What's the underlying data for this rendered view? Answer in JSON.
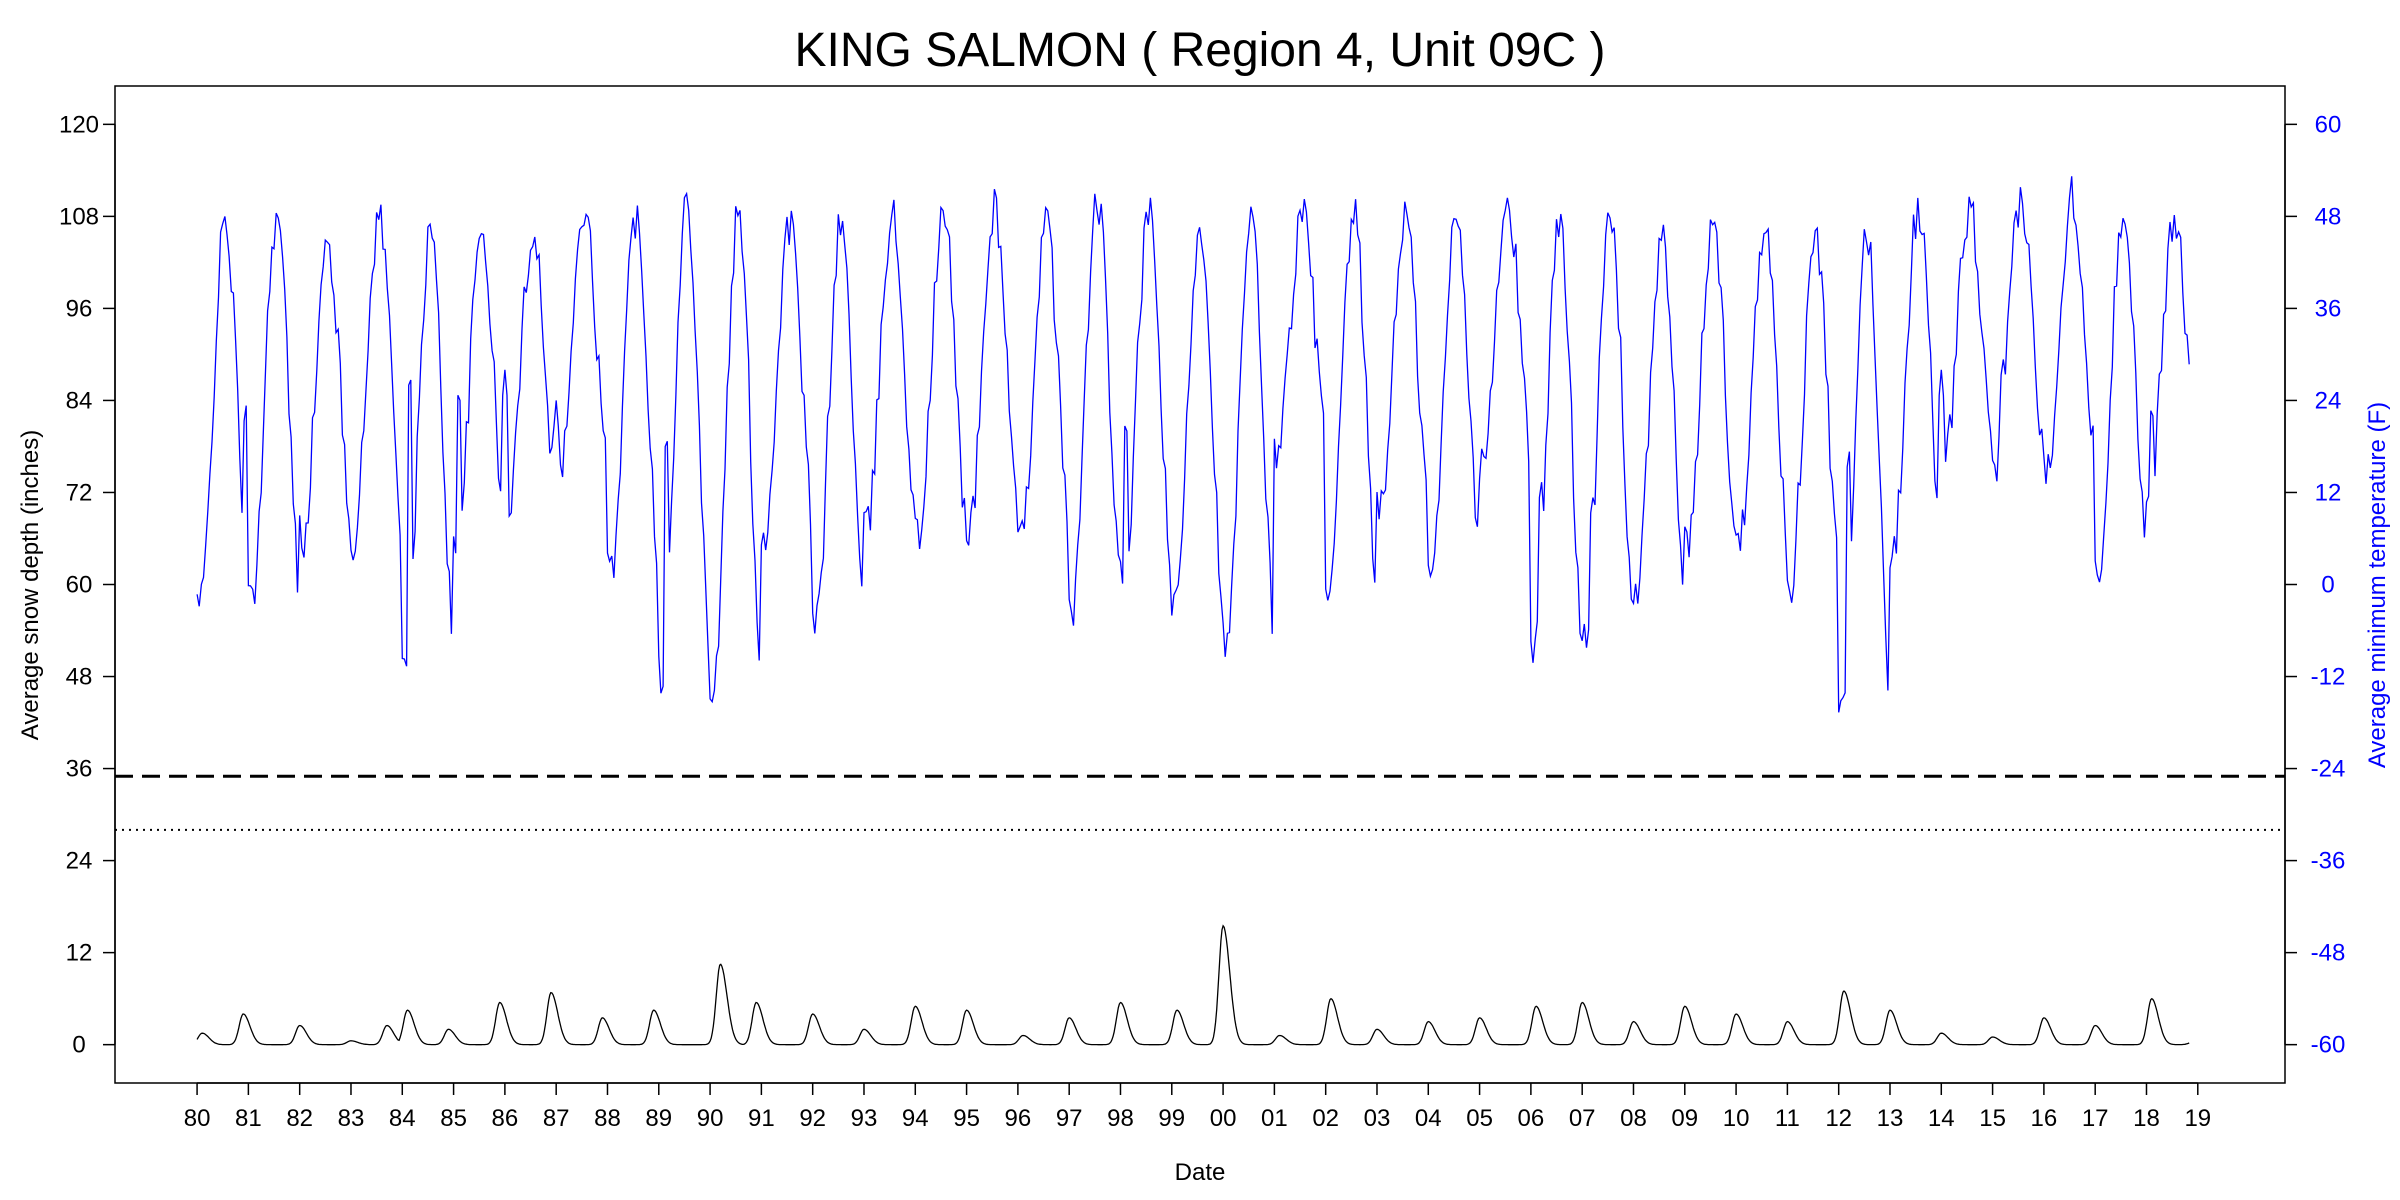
{
  "chart_data": {
    "type": "line",
    "title": "KING SALMON ( Region 4, Unit 09C )",
    "xlabel": "Date",
    "ylabel": "Average snow depth (inches)",
    "ylabel_right": "Average minimum temperature (F)",
    "x_ticks": [
      "80",
      "81",
      "82",
      "83",
      "84",
      "85",
      "86",
      "87",
      "88",
      "89",
      "90",
      "91",
      "92",
      "93",
      "94",
      "95",
      "96",
      "97",
      "98",
      "99",
      "00",
      "01",
      "02",
      "03",
      "04",
      "05",
      "06",
      "07",
      "08",
      "09",
      "10",
      "11",
      "12",
      "13",
      "14",
      "15",
      "16",
      "17",
      "18",
      "19"
    ],
    "y_ticks_left": [
      0,
      12,
      24,
      36,
      48,
      60,
      72,
      84,
      96,
      108,
      120
    ],
    "y_ticks_right": [
      -60,
      -48,
      -36,
      -24,
      -12,
      0,
      12,
      24,
      36,
      48,
      60
    ],
    "ylim_left": [
      -5,
      125
    ],
    "ylim_right": [
      -65,
      65
    ],
    "xlim": [
      1978.4,
      2020.7
    ],
    "reference_lines": [
      {
        "style": "dashed",
        "y": 35,
        "axis": "left"
      },
      {
        "style": "dotted",
        "y": 28,
        "axis": "left"
      }
    ],
    "series": [
      {
        "axis": "left",
        "color": "#000000",
        "annual_peaks": [
          [
            1980.1,
            1.5
          ],
          [
            1980.9,
            4
          ],
          [
            1982.0,
            2.5
          ],
          [
            1983.0,
            0.5
          ],
          [
            1983.7,
            2.5
          ],
          [
            1984.1,
            4.5
          ],
          [
            1984.9,
            2
          ],
          [
            1985.9,
            5.5
          ],
          [
            1986.9,
            6.8
          ],
          [
            1987.9,
            3.5
          ],
          [
            1988.9,
            4.5
          ],
          [
            1990.2,
            10.5
          ],
          [
            1990.9,
            5.5
          ],
          [
            1992.0,
            4
          ],
          [
            1993.0,
            2
          ],
          [
            1994.0,
            5
          ],
          [
            1995.0,
            4.5
          ],
          [
            1996.1,
            1.2
          ],
          [
            1997.0,
            3.5
          ],
          [
            1998.0,
            5.5
          ],
          [
            1999.1,
            4.5
          ],
          [
            2000.0,
            15.5
          ],
          [
            2001.1,
            1.2
          ],
          [
            2002.1,
            6
          ],
          [
            2003.0,
            2
          ],
          [
            2004.0,
            3
          ],
          [
            2005.0,
            3.5
          ],
          [
            2006.1,
            5
          ],
          [
            2007.0,
            5.5
          ],
          [
            2008.0,
            3
          ],
          [
            2009.0,
            5
          ],
          [
            2010.0,
            4
          ],
          [
            2011.0,
            3
          ],
          [
            2012.1,
            7
          ],
          [
            2013.0,
            4.5
          ],
          [
            2014.0,
            1.5
          ],
          [
            2015.0,
            1
          ],
          [
            2016.0,
            3.5
          ],
          [
            2017.0,
            2.5
          ],
          [
            2018.1,
            6
          ],
          [
            2018.9,
            0.3
          ]
        ]
      },
      {
        "axis": "right",
        "color": "#0000ff",
        "start": 1980.0,
        "end": 2018.85,
        "annual_max": [
          47,
          48,
          44,
          48,
          46,
          46,
          46,
          48,
          48,
          50,
          48,
          47,
          47,
          48,
          48,
          49,
          47,
          50,
          48,
          47,
          47,
          48,
          48,
          48,
          49,
          49,
          47,
          48,
          45,
          47,
          47,
          45,
          46,
          49,
          49,
          50,
          51,
          49,
          48
        ],
        "annual_min": [
          -3,
          -3,
          6,
          6,
          -10,
          4,
          10,
          14,
          1,
          -12,
          -14,
          6,
          -6,
          7,
          6,
          7,
          5,
          -3,
          -1,
          -4,
          -9,
          18,
          -2,
          9,
          1,
          16,
          -8,
          -6,
          -2,
          4,
          5,
          0,
          -17,
          4,
          15,
          15,
          15,
          2,
          12
        ],
        "spikes": [
          [
            1980.95,
            24
          ],
          [
            1984.15,
            28
          ],
          [
            1985.1,
            26
          ],
          [
            1986.0,
            28
          ],
          [
            1987.0,
            24
          ],
          [
            1989.15,
            20
          ],
          [
            1998.1,
            22
          ],
          [
            2001.25,
            27
          ],
          [
            2006.2,
            14
          ],
          [
            2007.2,
            12
          ],
          [
            2012.2,
            18
          ],
          [
            2014.0,
            28
          ],
          [
            2015.2,
            30
          ],
          [
            2018.1,
            24
          ]
        ]
      }
    ]
  }
}
